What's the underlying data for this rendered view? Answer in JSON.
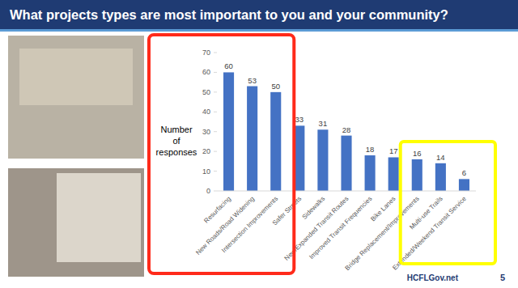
{
  "chart_data": {
    "type": "bar",
    "title": "What projects types are most important to you and your community?",
    "y_label": "Number of responses",
    "categories": [
      "Resurfacing",
      "New Roads/Road Widening",
      "Intersection Improvements",
      "Safer Streets",
      "Sidewalks",
      "New/Expanded Transit Routes",
      "Improved Transit Frequencies",
      "Bike Lanes",
      "Bridge Replacement/Improvements",
      "Multi-use Trails",
      "Extended/Weekend Transit Service"
    ],
    "values": [
      60,
      53,
      50,
      33,
      31,
      28,
      18,
      17,
      16,
      14,
      6
    ],
    "color": "#4472c4",
    "ylim": [
      0,
      70
    ],
    "yticks": [
      0,
      10,
      20,
      30,
      40,
      50,
      60,
      70
    ],
    "grid": false,
    "data_labels": true
  },
  "slide": {
    "website": "HCFLGov.net",
    "page_number": 5
  }
}
